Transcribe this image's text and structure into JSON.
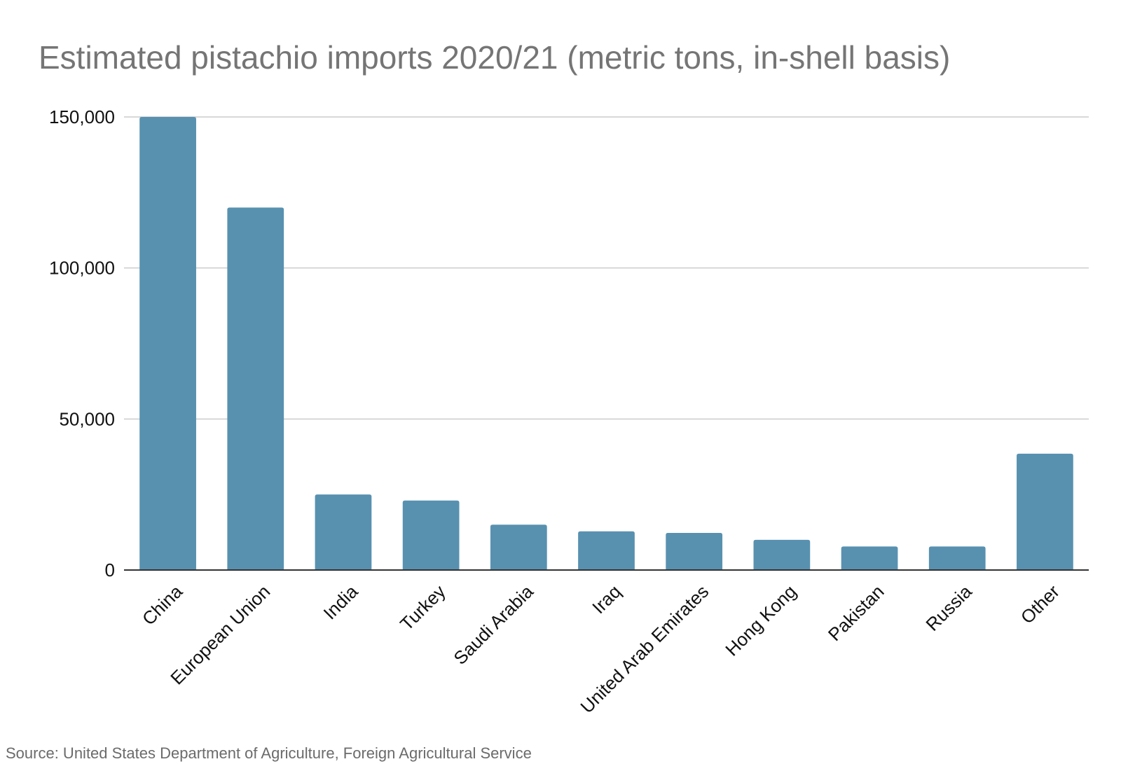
{
  "chart_data": {
    "type": "bar",
    "title": "Estimated pistachio imports 2020/21 (metric tons, in-shell basis)",
    "xlabel": "",
    "ylabel": "",
    "categories": [
      "China",
      "European Union",
      "India",
      "Turkey",
      "Saudi Arabia",
      "Iraq",
      "United Arab Emirates",
      "Hong Kong",
      "Pakistan",
      "Russia",
      "Other"
    ],
    "values": [
      150000,
      120000,
      25000,
      23000,
      15000,
      12800,
      12300,
      10000,
      7800,
      7800,
      38500
    ],
    "ylim": [
      0,
      150000
    ],
    "yticks": [
      0,
      50000,
      100000,
      150000
    ],
    "ytick_labels": [
      "0",
      "50,000",
      "100,000",
      "150,000"
    ],
    "grid": true,
    "legend": "none",
    "bar_color": "#5891b0",
    "source": "Source: United States Department of Agriculture, Foreign Agricultural Service"
  }
}
